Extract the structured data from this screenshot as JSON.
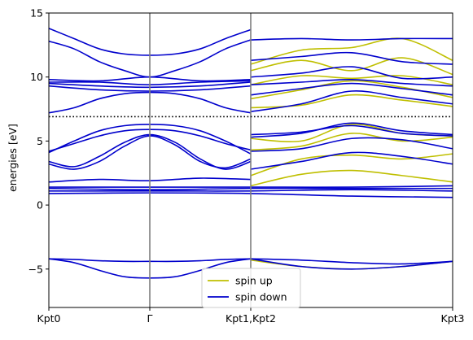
{
  "chart_data": {
    "type": "line",
    "title": "",
    "xlabel": "",
    "ylabel": "energies [eV]",
    "ylim": [
      -8,
      15
    ],
    "yticks": [
      -5,
      0,
      5,
      10,
      15
    ],
    "ytick_labels": [
      "−5",
      "0",
      "5",
      "10",
      "15"
    ],
    "xlim": [
      0,
      4
    ],
    "kpoints": [
      {
        "label": "Kpt0",
        "x": 0
      },
      {
        "label": "Γ",
        "x": 1
      },
      {
        "label": "Kpt1,Kpt2",
        "x": 2
      },
      {
        "label": "Kpt3",
        "x": 4
      }
    ],
    "fermi_level": 6.9,
    "legend": {
      "position": "lower center",
      "entries": [
        {
          "label": "spin up",
          "color": "#bfbf00"
        },
        {
          "label": "spin down",
          "color": "#0000cc"
        }
      ]
    },
    "series": [
      {
        "name": "spin up",
        "color": "#bfbf00",
        "bands": [
          {
            "x": [
              2.0,
              2.5,
              3.0,
              3.5,
              4.0
            ],
            "y": [
              -4.3,
              -4.8,
              -5.0,
              -4.8,
              -4.4
            ]
          },
          {
            "x": [
              2.0,
              2.5,
              3.0,
              3.5,
              4.0
            ],
            "y": [
              1.5,
              2.4,
              2.7,
              2.3,
              1.8
            ]
          },
          {
            "x": [
              2.0,
              2.5,
              3.0,
              3.5,
              4.0
            ],
            "y": [
              2.3,
              3.6,
              3.9,
              3.6,
              4.0
            ]
          },
          {
            "x": [
              2.0,
              2.5,
              3.0,
              3.5,
              4.0
            ],
            "y": [
              4.3,
              4.6,
              5.6,
              5.0,
              5.3
            ]
          },
          {
            "x": [
              2.0,
              2.5,
              3.0,
              3.5,
              4.0
            ],
            "y": [
              5.2,
              5.0,
              6.3,
              5.6,
              5.4
            ]
          },
          {
            "x": [
              2.0,
              2.5,
              3.0,
              3.5,
              4.0
            ],
            "y": [
              7.6,
              7.8,
              8.6,
              8.2,
              7.7
            ]
          },
          {
            "x": [
              2.0,
              2.5,
              3.0,
              3.5,
              4.0
            ],
            "y": [
              8.3,
              9.0,
              9.7,
              9.2,
              8.4
            ]
          },
          {
            "x": [
              2.0,
              2.5,
              3.0,
              3.5,
              4.0
            ],
            "y": [
              9.4,
              10.1,
              9.9,
              10.1,
              9.4
            ]
          },
          {
            "x": [
              2.0,
              2.5,
              3.0,
              3.5,
              4.0
            ],
            "y": [
              10.5,
              11.3,
              10.5,
              11.5,
              10.2
            ]
          },
          {
            "x": [
              2.0,
              2.5,
              3.0,
              3.5,
              4.0
            ],
            "y": [
              11.0,
              12.1,
              12.3,
              13.0,
              11.3
            ]
          }
        ]
      },
      {
        "name": "spin down",
        "color": "#0000cc",
        "bands": [
          {
            "x": [
              0,
              0.25,
              0.5,
              0.75,
              1.0,
              1.25,
              1.5,
              1.75,
              2.0
            ],
            "y": [
              -4.2,
              -4.5,
              -5.1,
              -5.6,
              -5.7,
              -5.6,
              -5.1,
              -4.5,
              -4.2
            ]
          },
          {
            "x": [
              0,
              0.25,
              0.5,
              0.75,
              1.0,
              1.25,
              1.5,
              1.75,
              2.0
            ],
            "y": [
              -4.2,
              -4.25,
              -4.35,
              -4.4,
              -4.4,
              -4.4,
              -4.35,
              -4.25,
              -4.2
            ]
          },
          {
            "x": [
              2.0,
              2.5,
              3.0,
              3.5,
              4.0
            ],
            "y": [
              -4.2,
              -4.8,
              -5.0,
              -4.8,
              -4.4
            ]
          },
          {
            "x": [
              2.0,
              2.5,
              3.0,
              3.5,
              4.0
            ],
            "y": [
              -4.2,
              -4.3,
              -4.5,
              -4.6,
              -4.4
            ]
          },
          {
            "x": [
              0,
              1.0,
              2.0,
              3.0,
              4.0
            ],
            "y": [
              0.9,
              0.95,
              0.9,
              0.7,
              0.6
            ]
          },
          {
            "x": [
              0,
              1.0,
              2.0,
              3.0,
              4.0
            ],
            "y": [
              1.1,
              1.1,
              1.1,
              1.2,
              1.1
            ]
          },
          {
            "x": [
              0,
              1.0,
              2.0,
              3.0,
              4.0
            ],
            "y": [
              1.3,
              1.2,
              1.3,
              1.3,
              1.3
            ]
          },
          {
            "x": [
              0,
              1.0,
              2.0,
              3.0,
              4.0
            ],
            "y": [
              1.4,
              1.4,
              1.4,
              1.4,
              1.5
            ]
          },
          {
            "x": [
              0,
              0.5,
              1.0,
              1.5,
              2.0
            ],
            "y": [
              1.8,
              2.0,
              1.9,
              2.1,
              2.0
            ]
          },
          {
            "x": [
              0,
              0.25,
              0.5,
              0.75,
              1.0,
              1.25,
              1.5,
              1.75,
              2.0
            ],
            "y": [
              3.4,
              3.0,
              3.8,
              4.9,
              5.5,
              4.9,
              3.6,
              2.8,
              3.4
            ]
          },
          {
            "x": [
              0,
              0.25,
              0.5,
              0.75,
              1.0,
              1.25,
              1.5,
              1.75,
              2.0
            ],
            "y": [
              3.2,
              2.8,
              3.4,
              4.6,
              5.4,
              4.7,
              3.4,
              2.9,
              3.6
            ]
          },
          {
            "x": [
              0,
              0.25,
              0.5,
              0.75,
              1.0,
              1.25,
              1.5,
              1.75,
              2.0
            ],
            "y": [
              4.2,
              4.8,
              5.4,
              5.8,
              5.9,
              5.8,
              5.4,
              4.8,
              4.3
            ]
          },
          {
            "x": [
              0,
              0.25,
              0.5,
              0.75,
              1.0,
              1.25,
              1.5,
              1.75,
              2.0
            ],
            "y": [
              4.1,
              5.0,
              5.8,
              6.2,
              6.3,
              6.2,
              5.8,
              5.0,
              4.0
            ]
          },
          {
            "x": [
              2.0,
              2.5,
              3.0,
              3.5,
              4.0
            ],
            "y": [
              2.8,
              3.4,
              4.1,
              3.8,
              3.2
            ]
          },
          {
            "x": [
              2.0,
              2.5,
              3.0,
              3.5,
              4.0
            ],
            "y": [
              4.2,
              4.4,
              5.2,
              5.1,
              4.4
            ]
          },
          {
            "x": [
              2.0,
              2.5,
              3.0,
              3.5,
              4.0
            ],
            "y": [
              5.3,
              5.6,
              6.4,
              5.8,
              5.5
            ]
          },
          {
            "x": [
              2.0,
              2.5,
              3.0,
              3.5,
              4.0
            ],
            "y": [
              5.5,
              5.7,
              6.2,
              5.6,
              5.4
            ]
          },
          {
            "x": [
              0,
              0.25,
              0.5,
              0.75,
              1.0,
              1.25,
              1.5,
              1.75,
              2.0
            ],
            "y": [
              7.2,
              7.6,
              8.3,
              8.7,
              8.8,
              8.7,
              8.3,
              7.6,
              7.2
            ]
          },
          {
            "x": [
              0,
              0.5,
              1.0,
              1.5,
              2.0
            ],
            "y": [
              9.3,
              9.0,
              8.9,
              9.0,
              9.3
            ]
          },
          {
            "x": [
              0,
              0.5,
              1.0,
              1.5,
              2.0
            ],
            "y": [
              9.5,
              9.3,
              9.2,
              9.3,
              9.6
            ]
          },
          {
            "x": [
              0,
              0.5,
              1.0,
              1.5,
              2.0
            ],
            "y": [
              9.6,
              9.6,
              9.4,
              9.6,
              9.7
            ]
          },
          {
            "x": [
              0,
              0.5,
              1.0,
              1.5,
              2.0
            ],
            "y": [
              9.8,
              9.7,
              10.0,
              9.7,
              9.8
            ]
          },
          {
            "x": [
              0,
              0.25,
              0.5,
              0.75,
              1.0,
              1.25,
              1.5,
              1.75,
              2.0
            ],
            "y": [
              12.8,
              12.2,
              11.2,
              10.5,
              10.0,
              10.5,
              11.2,
              12.2,
              12.9
            ]
          },
          {
            "x": [
              0,
              0.25,
              0.5,
              0.75,
              1.0,
              1.25,
              1.5,
              1.75,
              2.0
            ],
            "y": [
              13.8,
              13.0,
              12.2,
              11.8,
              11.7,
              11.8,
              12.2,
              13.0,
              13.7
            ]
          },
          {
            "x": [
              2.0,
              2.5,
              3.0,
              3.5,
              4.0
            ],
            "y": [
              7.3,
              7.9,
              8.9,
              8.4,
              7.9
            ]
          },
          {
            "x": [
              2.0,
              2.5,
              3.0,
              3.5,
              4.0
            ],
            "y": [
              8.6,
              9.1,
              9.5,
              9.1,
              8.6
            ]
          },
          {
            "x": [
              2.0,
              2.5,
              3.0,
              3.5,
              4.0
            ],
            "y": [
              9.4,
              9.6,
              9.8,
              9.5,
              9.3
            ]
          },
          {
            "x": [
              2.0,
              2.5,
              3.0,
              3.5,
              4.0
            ],
            "y": [
              10.0,
              10.3,
              10.8,
              9.9,
              10.0
            ]
          },
          {
            "x": [
              2.0,
              2.5,
              3.0,
              3.5,
              4.0
            ],
            "y": [
              11.3,
              11.6,
              11.9,
              11.2,
              11.0
            ]
          },
          {
            "x": [
              2.0,
              2.5,
              3.0,
              3.5,
              4.0
            ],
            "y": [
              12.9,
              13.0,
              12.9,
              13.0,
              13.0
            ]
          }
        ]
      }
    ]
  }
}
